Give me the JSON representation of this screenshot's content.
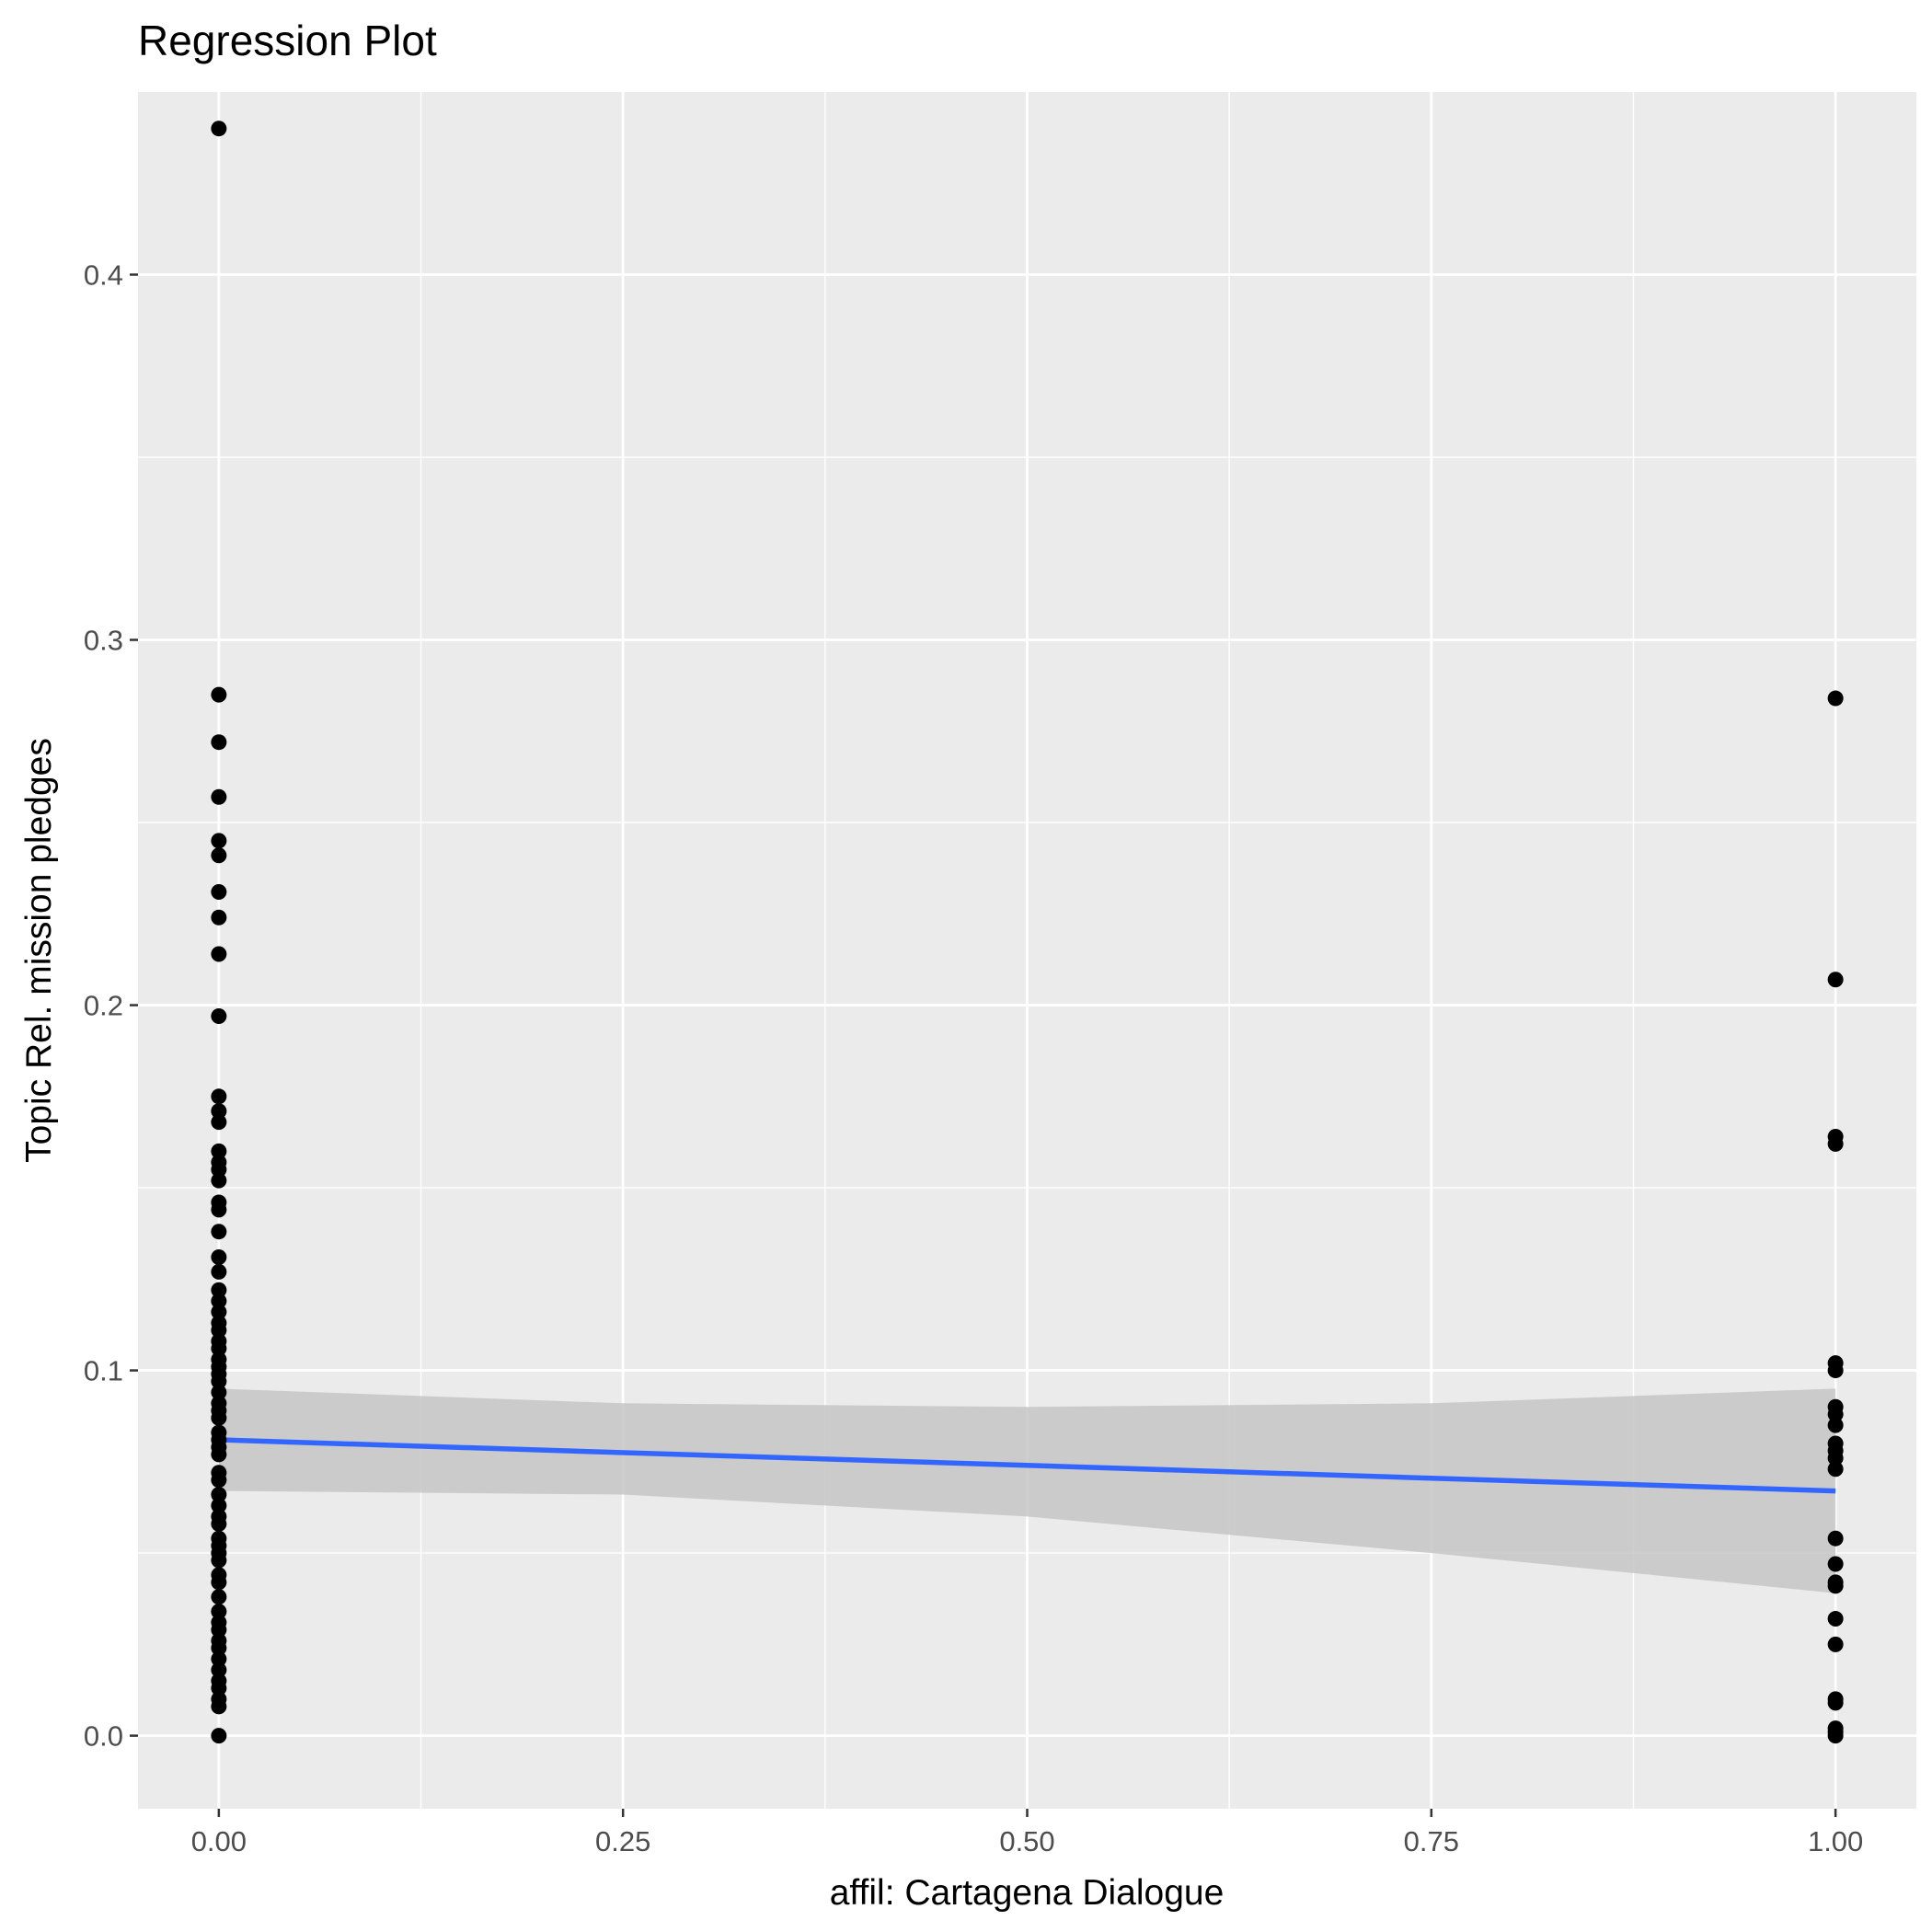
{
  "chart_data": {
    "type": "scatter",
    "title": "Regression Plot",
    "xlabel": "affil: Cartagena Dialogue",
    "ylabel": "Topic Rel. mission pledges",
    "xlim": [
      -0.05,
      1.05
    ],
    "ylim": [
      -0.02,
      0.45
    ],
    "x_ticks": [
      0,
      0.25,
      0.5,
      0.75,
      1
    ],
    "x_tick_labels": [
      "0.00",
      "0.25",
      "0.50",
      "0.75",
      "1.00"
    ],
    "y_ticks": [
      0,
      0.1,
      0.2,
      0.3,
      0.4
    ],
    "y_tick_labels": [
      "0.0",
      "0.1",
      "0.2",
      "0.3",
      "0.4"
    ],
    "grid": true,
    "legend": "none",
    "colors": {
      "panel": "#ebebeb",
      "grid": "#ffffff",
      "points": "#000000",
      "fit_line": "#3366ff",
      "ribbon": "#c6c6c6"
    },
    "series": [
      {
        "x_value": 0,
        "y": [
          0.44,
          0.285,
          0.272,
          0.257,
          0.245,
          0.241,
          0.231,
          0.224,
          0.214,
          0.197,
          0.175,
          0.171,
          0.168,
          0.16,
          0.157,
          0.155,
          0.152,
          0.146,
          0.144,
          0.138,
          0.131,
          0.127,
          0.122,
          0.119,
          0.116,
          0.113,
          0.111,
          0.108,
          0.106,
          0.103,
          0.101,
          0.099,
          0.097,
          0.094,
          0.091,
          0.089,
          0.087,
          0.083,
          0.081,
          0.079,
          0.077,
          0.072,
          0.07,
          0.066,
          0.063,
          0.06,
          0.058,
          0.054,
          0.052,
          0.05,
          0.048,
          0.044,
          0.042,
          0.038,
          0.034,
          0.031,
          0.029,
          0.026,
          0.024,
          0.021,
          0.018,
          0.015,
          0.013,
          0.01,
          0.008,
          0.0
        ]
      },
      {
        "x_value": 1,
        "y": [
          0.284,
          0.207,
          0.164,
          0.162,
          0.102,
          0.1,
          0.09,
          0.088,
          0.085,
          0.08,
          0.078,
          0.076,
          0.073,
          0.054,
          0.047,
          0.042,
          0.041,
          0.032,
          0.025,
          0.01,
          0.009,
          0.002,
          0.001,
          0.0
        ]
      }
    ],
    "fit": {
      "x": [
        0,
        1
      ],
      "y": [
        0.081,
        0.067
      ],
      "ci_x": [
        0,
        0.25,
        0.5,
        0.75,
        1
      ],
      "ci_lower": [
        0.067,
        0.066,
        0.06,
        0.05,
        0.039
      ],
      "ci_upper": [
        0.095,
        0.091,
        0.09,
        0.091,
        0.095
      ]
    }
  }
}
